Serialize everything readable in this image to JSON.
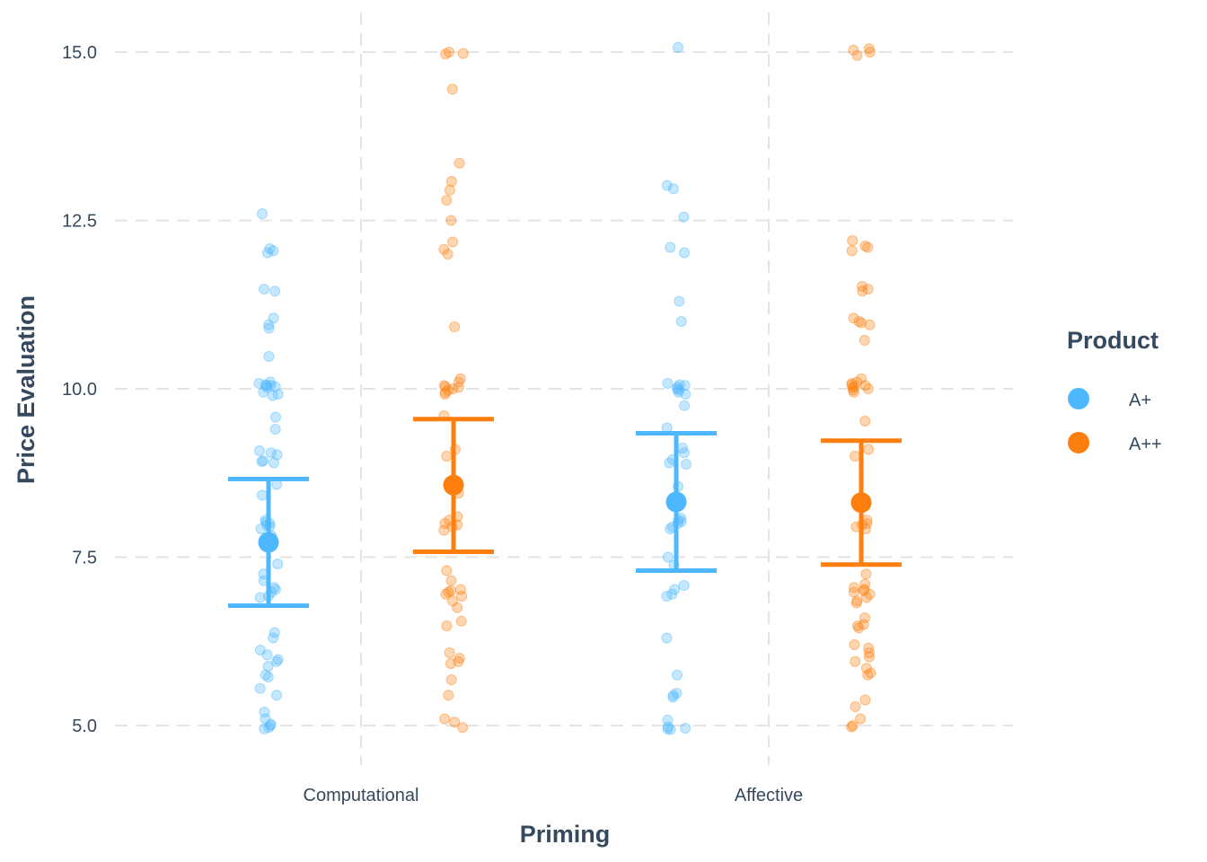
{
  "chart_data": {
    "type": "scatter",
    "xlabel": "Priming",
    "ylabel": "Price Evaluation",
    "categories": [
      "Computational",
      "Affective"
    ],
    "ylim": [
      4.45,
      15.6
    ],
    "y_ticks": [
      "5.0",
      "7.5",
      "10.0",
      "12.5",
      "15.0"
    ],
    "grid": true,
    "legend": {
      "title": "Product",
      "position": "right",
      "entries": [
        "A+",
        "A++"
      ]
    },
    "colors": {
      "A+": "#4db8ff",
      "A++": "#ff7f0e"
    },
    "series": [
      {
        "name": "A+",
        "summary": [
          {
            "category": "Computational",
            "mean": 7.72,
            "lower": 6.78,
            "upper": 8.66
          },
          {
            "category": "Affective",
            "mean": 8.32,
            "lower": 7.3,
            "upper": 9.34
          }
        ],
        "points": [
          {
            "category": "Computational",
            "values": [
              12.6,
              12.05,
              12.08,
              12.02,
              11.48,
              11.45,
              11.05,
              10.95,
              10.9,
              10.48,
              10.08,
              10.1,
              10.05,
              10.05,
              10.03,
              10.06,
              10.02,
              9.95,
              9.92,
              9.9,
              9.58,
              9.4,
              9.08,
              9.05,
              9.02,
              8.93,
              8.9,
              8.92,
              8.58,
              8.42,
              8.05,
              8.0,
              8.02,
              7.98,
              7.96,
              7.92,
              7.82,
              7.4,
              7.25,
              7.15,
              7.05,
              7.02,
              6.98,
              6.9,
              6.92,
              6.38,
              6.3,
              6.12,
              6.05,
              5.98,
              5.95,
              5.88,
              5.75,
              5.72,
              5.55,
              5.45,
              5.2,
              5.1,
              5.02,
              5.0,
              4.97,
              4.95
            ]
          },
          {
            "category": "Affective",
            "values": [
              15.07,
              13.02,
              12.97,
              12.55,
              12.1,
              12.02,
              11.3,
              11.0,
              10.08,
              10.06,
              10.05,
              10.03,
              10.0,
              9.98,
              9.95,
              9.92,
              9.75,
              9.42,
              9.12,
              9.05,
              8.95,
              8.9,
              8.88,
              8.55,
              8.08,
              8.05,
              8.03,
              8.0,
              7.95,
              7.92,
              7.5,
              7.38,
              7.08,
              7.02,
              6.95,
              6.92,
              6.3,
              5.75,
              5.48,
              5.45,
              5.42,
              5.08,
              4.98,
              4.96,
              4.95,
              4.94
            ]
          }
        ]
      },
      {
        "name": "A++",
        "summary": [
          {
            "category": "Computational",
            "mean": 8.57,
            "lower": 7.58,
            "upper": 9.55
          },
          {
            "category": "Affective",
            "mean": 8.31,
            "lower": 7.39,
            "upper": 9.23
          }
        ],
        "points": [
          {
            "category": "Computational",
            "values": [
              15.0,
              14.98,
              14.97,
              14.45,
              13.35,
              13.08,
              12.95,
              12.8,
              12.5,
              12.18,
              12.07,
              12.0,
              10.92,
              10.15,
              10.1,
              10.05,
              10.03,
              10.02,
              10.0,
              9.98,
              9.95,
              9.92,
              9.6,
              9.1,
              9.0,
              8.45,
              8.1,
              8.05,
              8.0,
              7.98,
              7.95,
              7.9,
              7.3,
              7.15,
              7.02,
              7.0,
              6.98,
              6.95,
              6.92,
              6.85,
              6.75,
              6.55,
              6.48,
              6.08,
              6.0,
              5.95,
              5.92,
              5.68,
              5.45,
              5.1,
              5.05,
              4.97
            ]
          },
          {
            "category": "Affective",
            "values": [
              15.05,
              15.03,
              15.0,
              14.95,
              12.2,
              12.12,
              12.1,
              12.05,
              11.52,
              11.48,
              11.45,
              11.05,
              11.0,
              10.98,
              10.95,
              10.72,
              10.15,
              10.1,
              10.08,
              10.06,
              10.05,
              10.03,
              10.02,
              10.0,
              9.98,
              9.95,
              9.52,
              9.1,
              9.0,
              8.05,
              8.0,
              7.98,
              7.95,
              7.92,
              7.25,
              7.1,
              7.05,
              7.02,
              7.0,
              6.98,
              6.95,
              6.9,
              6.85,
              6.82,
              6.6,
              6.5,
              6.48,
              6.45,
              6.2,
              6.15,
              6.08,
              6.02,
              5.95,
              5.85,
              5.78,
              5.75,
              5.38,
              5.28,
              5.1,
              5.0,
              4.98
            ]
          }
        ]
      }
    ]
  }
}
